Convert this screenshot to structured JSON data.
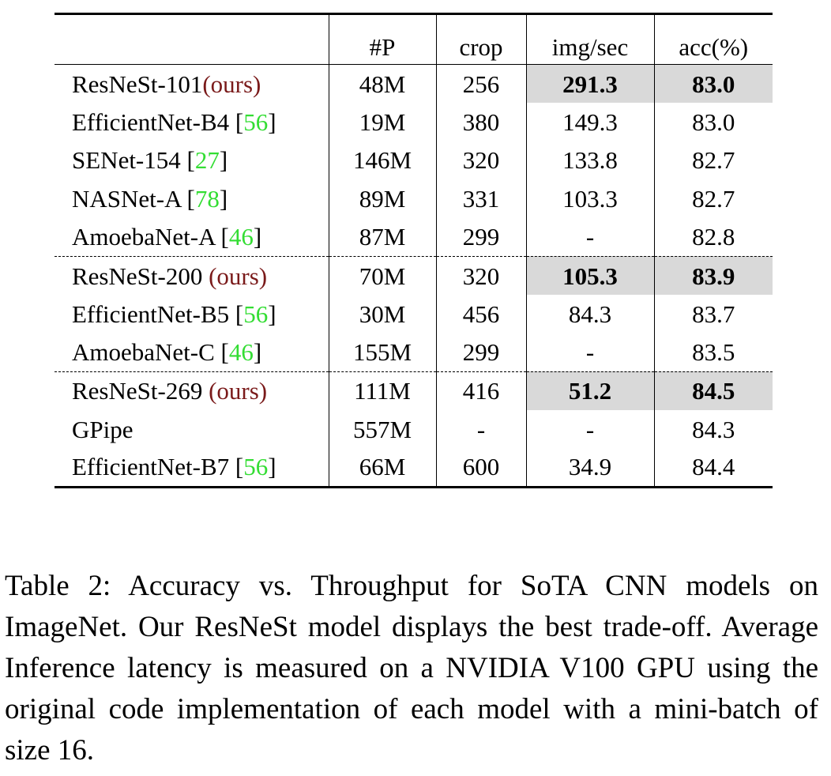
{
  "table": {
    "headers": [
      "",
      "#P",
      "crop",
      "img/sec",
      "acc(%)"
    ],
    "groups": [
      [
        {
          "name": "ResNeSt-101",
          "ours": "(ours)",
          "cite": "",
          "params": "48M",
          "crop": "256",
          "imgsec": "291.3",
          "acc": "83.0",
          "highlight": true
        },
        {
          "name": "EfficientNet-B4 ",
          "ours": "",
          "cite": "56",
          "params": "19M",
          "crop": "380",
          "imgsec": "149.3",
          "acc": "83.0",
          "highlight": false
        },
        {
          "name": "SENet-154 ",
          "ours": "",
          "cite": "27",
          "params": "146M",
          "crop": "320",
          "imgsec": "133.8",
          "acc": "82.7",
          "highlight": false
        },
        {
          "name": "NASNet-A ",
          "ours": "",
          "cite": "78",
          "params": "89M",
          "crop": "331",
          "imgsec": "103.3",
          "acc": "82.7",
          "highlight": false
        },
        {
          "name": "AmoebaNet-A ",
          "ours": "",
          "cite": "46",
          "params": "87M",
          "crop": "299",
          "imgsec": "-",
          "acc": "82.8",
          "highlight": false
        }
      ],
      [
        {
          "name": "ResNeSt-200 ",
          "ours": "(ours)",
          "cite": "",
          "params": "70M",
          "crop": "320",
          "imgsec": "105.3",
          "acc": "83.9",
          "highlight": true
        },
        {
          "name": "EfficientNet-B5 ",
          "ours": "",
          "cite": "56",
          "params": "30M",
          "crop": "456",
          "imgsec": "84.3",
          "acc": "83.7",
          "highlight": false
        },
        {
          "name": "AmoebaNet-C ",
          "ours": "",
          "cite": "46",
          "params": "155M",
          "crop": "299",
          "imgsec": "-",
          "acc": "83.5",
          "highlight": false
        }
      ],
      [
        {
          "name": "ResNeSt-269 ",
          "ours": "(ours)",
          "cite": "",
          "params": "111M",
          "crop": "416",
          "imgsec": "51.2",
          "acc": "84.5",
          "highlight": true
        },
        {
          "name": "GPipe",
          "ours": "",
          "cite": "",
          "params": "557M",
          "crop": "-",
          "imgsec": "-",
          "acc": "84.3",
          "highlight": false
        },
        {
          "name": "EfficientNet-B7 ",
          "ours": "",
          "cite": "56",
          "params": "66M",
          "crop": "600",
          "imgsec": "34.9",
          "acc": "84.4",
          "highlight": false
        }
      ]
    ]
  },
  "caption": "Table 2: Accuracy vs. Throughput for SoTA CNN models on ImageNet. Our ResNeSt model displays the best trade-off. Average Inference latency is measured on a NVIDIA V100 GPU using the original code implementation of each model with a mini-batch of size 16."
}
